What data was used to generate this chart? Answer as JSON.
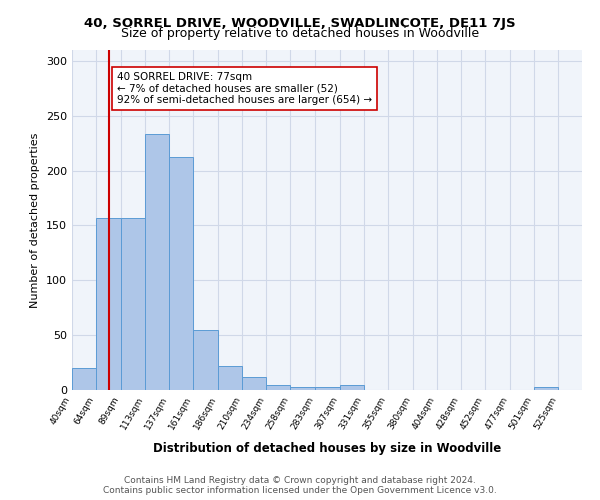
{
  "title1": "40, SORREL DRIVE, WOODVILLE, SWADLINCOTE, DE11 7JS",
  "title2": "Size of property relative to detached houses in Woodville",
  "xlabel": "Distribution of detached houses by size in Woodville",
  "ylabel": "Number of detached properties",
  "bin_labels": [
    "40sqm",
    "64sqm",
    "89sqm",
    "113sqm",
    "137sqm",
    "161sqm",
    "186sqm",
    "210sqm",
    "234sqm",
    "258sqm",
    "283sqm",
    "307sqm",
    "331sqm",
    "355sqm",
    "380sqm",
    "404sqm",
    "428sqm",
    "452sqm",
    "477sqm",
    "501sqm",
    "525sqm"
  ],
  "bin_edges": [
    40,
    64,
    89,
    113,
    137,
    161,
    186,
    210,
    234,
    258,
    283,
    307,
    331,
    355,
    380,
    404,
    428,
    452,
    477,
    501,
    525,
    549
  ],
  "bar_values": [
    20,
    157,
    157,
    233,
    212,
    55,
    22,
    12,
    5,
    3,
    3,
    5,
    0,
    0,
    0,
    0,
    0,
    0,
    0,
    3,
    0
  ],
  "bar_color": "#aec6e8",
  "bar_edge_color": "#5b9bd5",
  "property_line_x": 77,
  "property_line_color": "#cc0000",
  "annotation_text": "40 SORREL DRIVE: 77sqm\n← 7% of detached houses are smaller (52)\n92% of semi-detached houses are larger (654) →",
  "annotation_box_color": "#ffffff",
  "annotation_box_edge": "#cc0000",
  "ylim": [
    0,
    310
  ],
  "yticks": [
    0,
    50,
    100,
    150,
    200,
    250,
    300
  ],
  "footer_text": "Contains HM Land Registry data © Crown copyright and database right 2024.\nContains public sector information licensed under the Open Government Licence v3.0.",
  "grid_color": "#d0d8e8",
  "background_color": "#f0f4fa"
}
